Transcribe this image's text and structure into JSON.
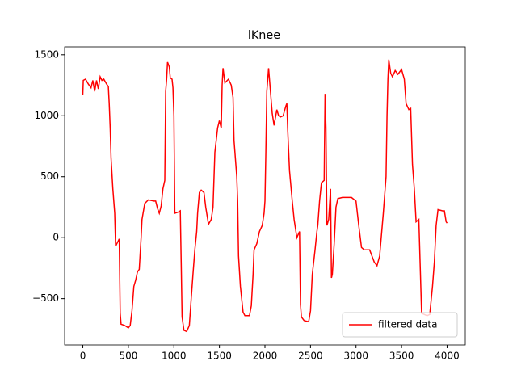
{
  "chart_data": {
    "type": "line",
    "title": "lKnee",
    "x": [
      0,
      5,
      30,
      60,
      90,
      110,
      130,
      150,
      170,
      190,
      210,
      230,
      260,
      280,
      290,
      300,
      310,
      330,
      350,
      360,
      380,
      400,
      410,
      420,
      460,
      500,
      520,
      540,
      560,
      580,
      600,
      620,
      640,
      650,
      680,
      720,
      780,
      800,
      820,
      840,
      860,
      880,
      900,
      910,
      920,
      930,
      950,
      960,
      980,
      990,
      1000,
      1010,
      1050,
      1070,
      1080,
      1090,
      1110,
      1140,
      1170,
      1190,
      1210,
      1230,
      1250,
      1260,
      1280,
      1300,
      1330,
      1350,
      1380,
      1410,
      1430,
      1450,
      1480,
      1500,
      1520,
      1530,
      1540,
      1560,
      1600,
      1630,
      1650,
      1660,
      1690,
      1700,
      1710,
      1730,
      1760,
      1780,
      1830,
      1850,
      1870,
      1880,
      1910,
      1940,
      1970,
      1990,
      2000,
      2010,
      2020,
      2040,
      2060,
      2080,
      2100,
      2130,
      2150,
      2170,
      2200,
      2230,
      2240,
      2250,
      2270,
      2300,
      2320,
      2350,
      2380,
      2390,
      2400,
      2430,
      2480,
      2500,
      2520,
      2550,
      2570,
      2580,
      2600,
      2620,
      2650,
      2660,
      2670,
      2680,
      2700,
      2720,
      2730,
      2740,
      2760,
      2780,
      2800,
      2850,
      2950,
      3000,
      3030,
      3060,
      3090,
      3150,
      3200,
      3230,
      3260,
      3300,
      3330,
      3340,
      3350,
      3360,
      3380,
      3400,
      3430,
      3460,
      3500,
      3530,
      3550,
      3580,
      3600,
      3620,
      3640,
      3660,
      3690,
      3720,
      3780,
      3810,
      3840,
      3860,
      3880,
      3900,
      3950,
      3970,
      3990,
      4000
    ],
    "series": [
      {
        "name": "filtered data",
        "color": "#ff0000",
        "values": [
          1170,
          1290,
          1300,
          1260,
          1230,
          1290,
          1200,
          1290,
          1220,
          1320,
          1290,
          1300,
          1260,
          1240,
          1100,
          900,
          650,
          400,
          200,
          -70,
          -40,
          -10,
          -620,
          -710,
          -720,
          -740,
          -720,
          -600,
          -400,
          -350,
          -280,
          -260,
          0,
          150,
          280,
          310,
          300,
          300,
          240,
          200,
          260,
          400,
          470,
          1200,
          1300,
          1440,
          1400,
          1310,
          1300,
          1230,
          1000,
          200,
          210,
          220,
          -200,
          -650,
          -760,
          -770,
          -720,
          -500,
          -300,
          -100,
          50,
          200,
          370,
          390,
          370,
          250,
          110,
          150,
          250,
          700,
          900,
          960,
          900,
          1250,
          1390,
          1270,
          1300,
          1250,
          1150,
          800,
          500,
          300,
          -150,
          -400,
          -610,
          -640,
          -640,
          -560,
          -300,
          -100,
          -50,
          50,
          100,
          200,
          300,
          700,
          1200,
          1390,
          1200,
          1020,
          920,
          1050,
          1000,
          990,
          1000,
          1080,
          1100,
          880,
          550,
          300,
          150,
          0,
          50,
          -550,
          -650,
          -680,
          -690,
          -600,
          -300,
          -100,
          50,
          100,
          300,
          450,
          470,
          1180,
          900,
          100,
          150,
          400,
          -330,
          -300,
          -50,
          250,
          320,
          330,
          330,
          300,
          100,
          -80,
          -100,
          -100,
          -200,
          -230,
          -150,
          200,
          500,
          1000,
          1300,
          1460,
          1350,
          1320,
          1370,
          1340,
          1380,
          1300,
          1100,
          1050,
          1060,
          600,
          400,
          130,
          150,
          -620,
          -640,
          -630,
          -400,
          -200,
          100,
          230,
          220,
          220,
          130,
          120
        ]
      }
    ],
    "xlim": [
      -200,
      4200
    ],
    "ylim": [
      -880,
      1565
    ],
    "xticks": [
      0,
      500,
      1000,
      1500,
      2000,
      2500,
      3000,
      3500,
      4000
    ],
    "yticks": [
      {
        "value": -500,
        "label": "−500"
      },
      0,
      500,
      1000,
      1500
    ],
    "legend": "lower right"
  }
}
